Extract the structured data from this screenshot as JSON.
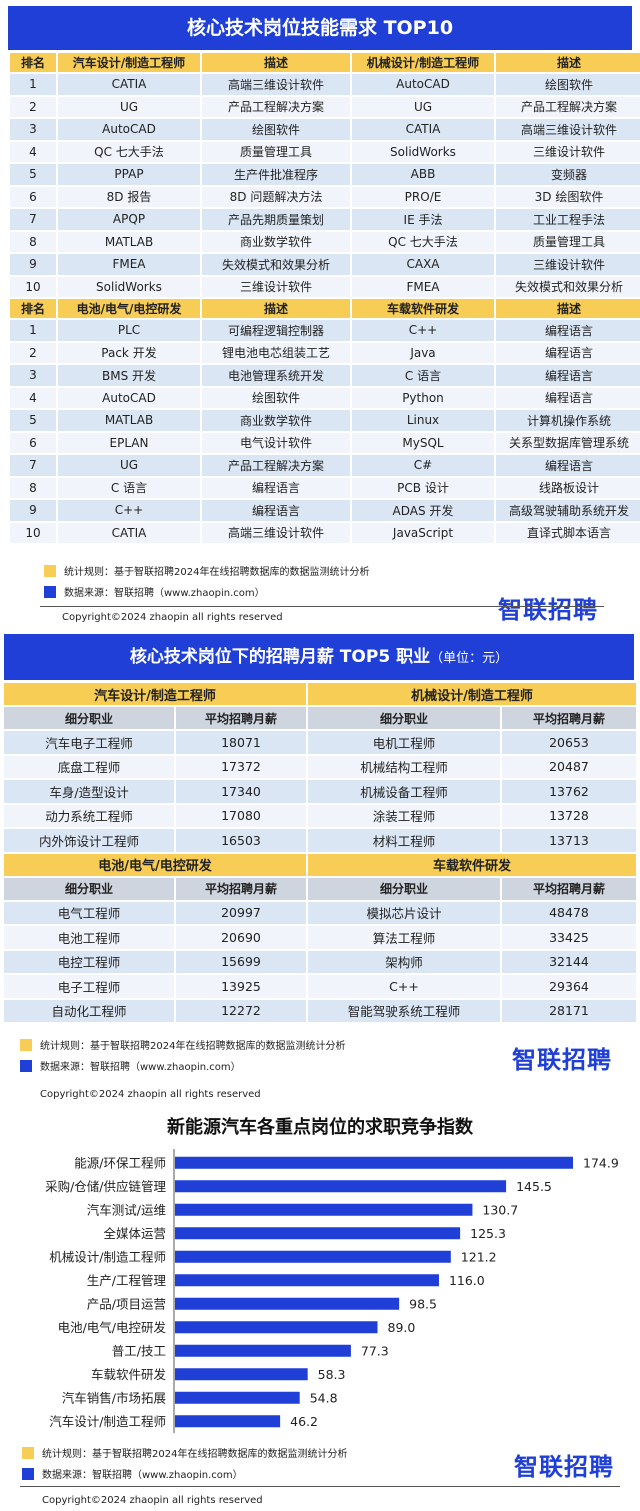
{
  "section1": {
    "title": "核心技术岗位技能需求 TOP10",
    "headers": [
      "排名",
      "汽车设计/制造工程师",
      "描述",
      "机械设计/制造工程师",
      "描述"
    ],
    "rows": [
      [
        "1",
        "CATIA",
        "高端三维设计软件",
        "AutoCAD",
        "绘图软件"
      ],
      [
        "2",
        "UG",
        "产品工程解决方案",
        "UG",
        "产品工程解决方案"
      ],
      [
        "3",
        "AutoCAD",
        "绘图软件",
        "CATIA",
        "高端三维设计软件"
      ],
      [
        "4",
        "QC 七大手法",
        "质量管理工具",
        "SolidWorks",
        "三维设计软件"
      ],
      [
        "5",
        "PPAP",
        "生产件批准程序",
        "ABB",
        "变频器"
      ],
      [
        "6",
        "8D 报告",
        "8D 问题解决方法",
        "PRO/E",
        "3D 绘图软件"
      ],
      [
        "7",
        "APQP",
        "产品先期质量策划",
        "IE 手法",
        "工业工程手法"
      ],
      [
        "8",
        "MATLAB",
        "商业数学软件",
        "QC 七大手法",
        "质量管理工具"
      ],
      [
        "9",
        "FMEA",
        "失效模式和效果分析",
        "CAXA",
        "三维设计软件"
      ],
      [
        "10",
        "SolidWorks",
        "三维设计软件",
        "FMEA",
        "失效模式和效果分析"
      ]
    ],
    "headers2": [
      "排名",
      "电池/电气/电控研发",
      "描述",
      "车载软件研发",
      "描述"
    ],
    "rows2": [
      [
        "1",
        "PLC",
        "可编程逻辑控制器",
        "C++",
        "编程语言"
      ],
      [
        "2",
        "Pack 开发",
        "锂电池电芯组装工艺",
        "Java",
        "编程语言"
      ],
      [
        "3",
        "BMS 开发",
        "电池管理系统开发",
        "C 语言",
        "编程语言"
      ],
      [
        "4",
        "AutoCAD",
        "绘图软件",
        "Python",
        "编程语言"
      ],
      [
        "5",
        "MATLAB",
        "商业数学软件",
        "Linux",
        "计算机操作系统"
      ],
      [
        "6",
        "EPLAN",
        "电气设计软件",
        "MySQL",
        "关系型数据库管理系统"
      ],
      [
        "7",
        "UG",
        "产品工程解决方案",
        "C#",
        "编程语言"
      ],
      [
        "8",
        "C 语言",
        "编程语言",
        "PCB 设计",
        "线路板设计"
      ],
      [
        "9",
        "C++",
        "编程语言",
        "ADAS 开发",
        "高级驾驶辅助系统开发"
      ],
      [
        "10",
        "CATIA",
        "高端三维设计软件",
        "JavaScript",
        "直译式脚本语言"
      ]
    ],
    "legend_rule": "统计规则：基于智联招聘2024年在线招聘数据库的数据监测统计分析",
    "legend_source": "数据来源：智联招聘（www.zhaopin.com）",
    "logo": "智联招聘",
    "copyright": "Copyright©2024 zhaopin all rights reserved"
  },
  "section2": {
    "title": "核心技术岗位下的招聘月薪 TOP5 职业",
    "unit": "（单位：元）",
    "group1": "汽车设计/制造工程师",
    "group2": "机械设计/制造工程师",
    "group3": "电池/电气/电控研发",
    "group4": "车载软件研发",
    "col_job": "细分职业",
    "col_salary": "平均招聘月薪",
    "rows_a": [
      [
        "汽车电子工程师",
        "18071",
        "电机工程师",
        "20653"
      ],
      [
        "底盘工程师",
        "17372",
        "机械结构工程师",
        "20487"
      ],
      [
        "车身/造型设计",
        "17340",
        "机械设备工程师",
        "13762"
      ],
      [
        "动力系统工程师",
        "17080",
        "涂装工程师",
        "13728"
      ],
      [
        "内外饰设计工程师",
        "16503",
        "材料工程师",
        "13713"
      ]
    ],
    "rows_b": [
      [
        "电气工程师",
        "20997",
        "模拟芯片设计",
        "48478"
      ],
      [
        "电池工程师",
        "20690",
        "算法工程师",
        "33425"
      ],
      [
        "电控工程师",
        "15699",
        "架构师",
        "32144"
      ],
      [
        "电子工程师",
        "13925",
        "C++",
        "29364"
      ],
      [
        "自动化工程师",
        "12272",
        "智能驾驶系统工程师",
        "28171"
      ]
    ],
    "legend_rule": "统计规则：基于智联招聘2024年在线招聘数据库的数据监测统计分析",
    "legend_source": "数据来源：智联招聘（www.zhaopin.com）",
    "logo": "智联招聘",
    "copyright": "Copyright©2024 zhaopin all rights reserved"
  },
  "section3": {
    "legend_rule": "统计规则：基于智联招聘2024年在线招聘数据库的数据监测统计分析",
    "legend_source": "数据来源：智联招聘（www.zhaopin.com）",
    "logo": "智联招聘",
    "copyright": "Copyright©2024 zhaopin all rights reserved"
  },
  "colors": {
    "accent": "#1f3fd6",
    "header_yellow": "#f7cd55",
    "row_blue": "#dbe6f5"
  },
  "chart_data": {
    "type": "bar",
    "orientation": "horizontal",
    "title": "新能源汽车各重点岗位的求职竞争指数",
    "categories": [
      "能源/环保工程师",
      "采购/仓储/供应链管理",
      "汽车测试/运维",
      "全媒体运营",
      "机械设计/制造工程师",
      "生产/工程管理",
      "产品/项目运营",
      "电池/电气/电控研发",
      "普工/技工",
      "车载软件研发",
      "汽车销售/市场拓展",
      "汽车设计/制造工程师"
    ],
    "values": [
      174.9,
      145.5,
      130.7,
      125.3,
      121.2,
      116.0,
      98.5,
      89.0,
      77.3,
      58.3,
      54.8,
      46.2
    ],
    "value_labels": [
      "174.9",
      "145.5",
      "130.7",
      "125.3",
      "121.2",
      "116.0",
      "98.5",
      "89.0",
      "77.3",
      "58.3",
      "54.8",
      "46.2"
    ],
    "xlim": [
      0,
      200
    ],
    "bar_color": "#1f3fd6",
    "grid": false,
    "legend": "none"
  }
}
